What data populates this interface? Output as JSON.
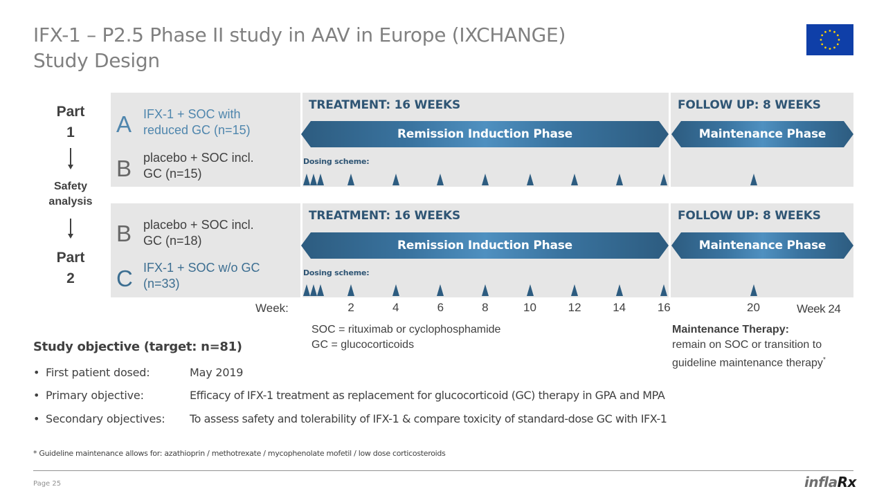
{
  "header": {
    "title_line1": "IFX-1 – P2.5 Phase II study in AAV in Europe (IXCHANGE)",
    "title_line2": "Study Design",
    "flag_icon": "eu-flag-icon"
  },
  "colors": {
    "accent_blue": "#2d5c80",
    "arm_blue": "#4f86ad",
    "panel_grey": "#e6e6e6",
    "title_grey": "#808080"
  },
  "sidebar": {
    "part1": [
      "Part",
      "1"
    ],
    "safety": [
      "Safety",
      "analysis"
    ],
    "part2": [
      "Part",
      "2"
    ]
  },
  "part1": {
    "arms": [
      {
        "letter": "A",
        "lines": [
          "IFX-1 + SOC with",
          "reduced GC (n=15)"
        ]
      },
      {
        "letter": "B",
        "lines": [
          "placebo + SOC incl.",
          "GC (n=15)"
        ]
      }
    ],
    "treatment_head": "TREATMENT: 16 WEEKS",
    "followup_head": "FOLLOW UP: 8 WEEKS",
    "induction_label": "Remission Induction Phase",
    "maintenance_label": "Maintenance Phase",
    "dosing_label": "Dosing scheme:"
  },
  "part2": {
    "arms": [
      {
        "letter": "B",
        "lines": [
          "placebo + SOC incl.",
          "GC (n=18)"
        ]
      },
      {
        "letter": "C",
        "lines": [
          "IFX-1 + SOC w/o GC",
          "(n=33)"
        ]
      }
    ],
    "treatment_head": "TREATMENT: 16 WEEKS",
    "followup_head": "FOLLOW UP: 8 WEEKS",
    "induction_label": "Remission Induction Phase",
    "maintenance_label": "Maintenance Phase",
    "dosing_label": "Dosing scheme:"
  },
  "dosing_weeks": [
    0,
    0.33,
    0.66,
    2,
    4,
    6,
    8,
    10,
    12,
    14,
    16,
    20
  ],
  "week_axis": {
    "label": "Week:",
    "ticks": [
      "2",
      "4",
      "6",
      "8",
      "10",
      "12",
      "14",
      "16",
      "20"
    ],
    "end_label": "Week 24"
  },
  "abbreviations": [
    "SOC = rituximab or cyclophosphamide",
    "GC = glucocorticoids"
  ],
  "maintenance_therapy": {
    "head": "Maintenance Therapy:",
    "line1": "remain on SOC or transition to",
    "line2": "guideline maintenance therapy",
    "mark": "*"
  },
  "objectives": {
    "head": "Study objective (target: n=81)",
    "items": [
      {
        "label": "First patient dosed:",
        "value": "May 2019"
      },
      {
        "label": "Primary objective:",
        "value": "Efficacy of IFX-1 treatment as replacement for glucocorticoid (GC) therapy in GPA and MPA"
      },
      {
        "label": "Secondary objectives:",
        "value": "To assess safety and tolerability of IFX-1 & compare toxicity of standard-dose GC with IFX-1"
      }
    ]
  },
  "footnote": "* Guideline maintenance allows for: azathioprin / methotrexate / mycophenolate mofetil / low dose corticosteroids",
  "footer": {
    "page": "Page 25",
    "logo_part1": "infla",
    "logo_part2": "Rx"
  }
}
